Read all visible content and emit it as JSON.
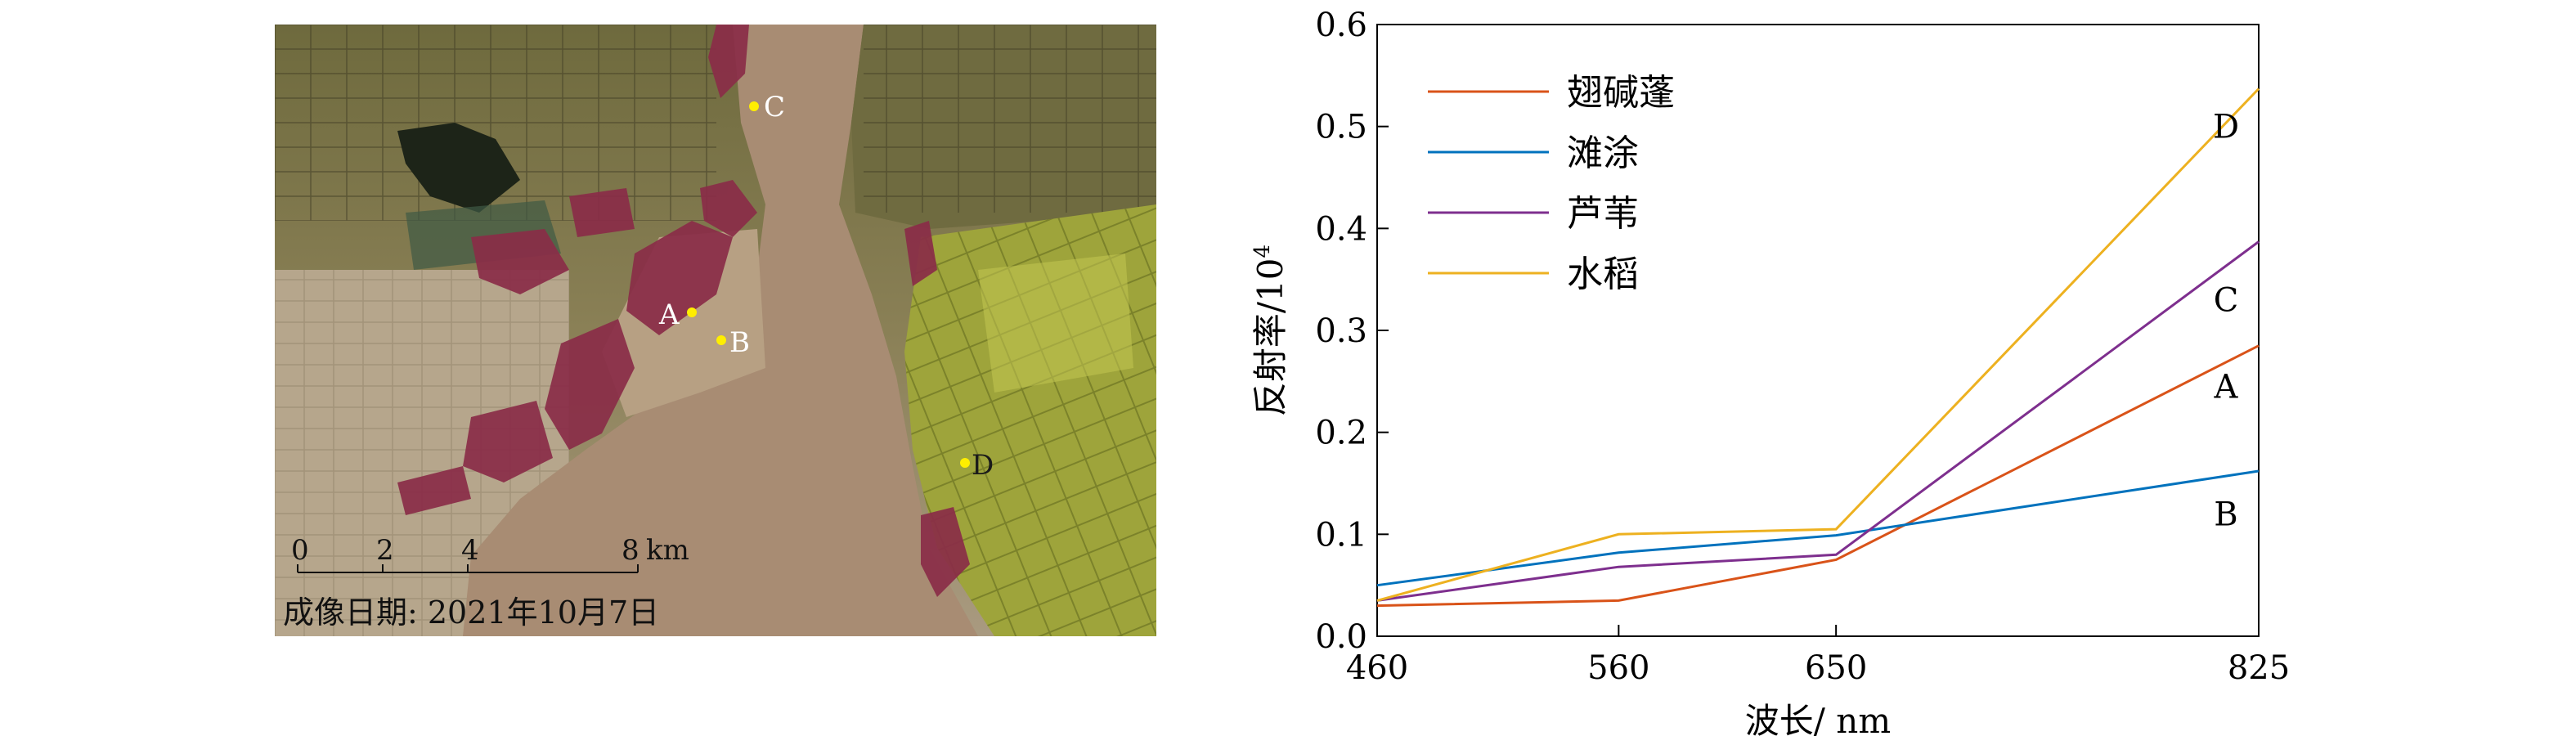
{
  "satellite_map": {
    "point_labels": [
      "A",
      "B",
      "C",
      "D"
    ],
    "scale_bar": {
      "ticks": [
        "0",
        "2",
        "4",
        "8"
      ],
      "unit": "km"
    },
    "caption": "成像日期: 2021年10月7日",
    "colors": {
      "water": "#a88c73",
      "suaeda_red": "#8a2d48",
      "rice_green": "#9ea43b",
      "marker": "#ffee00"
    }
  },
  "chart_data": {
    "type": "line",
    "x": [
      460,
      560,
      650,
      825
    ],
    "xlabel": "波长/ nm",
    "ylabel_base": "反射率/10",
    "ylabel_exp": "4",
    "xlim": [
      460,
      825
    ],
    "ylim": [
      0,
      0.6
    ],
    "yticks": [
      "0.0",
      "0.1",
      "0.2",
      "0.3",
      "0.4",
      "0.5",
      "0.6"
    ],
    "xticks": [
      "460",
      "560",
      "650",
      "825"
    ],
    "grid": false,
    "legend_position": "top-left",
    "series": [
      {
        "name": "翅碱蓬",
        "values": [
          0.03,
          0.035,
          0.075,
          0.285
        ],
        "color": "#d95319",
        "end_label": "A"
      },
      {
        "name": "滩涂",
        "values": [
          0.05,
          0.082,
          0.099,
          0.162
        ],
        "color": "#0072bd",
        "end_label": "B"
      },
      {
        "name": "芦苇",
        "values": [
          0.035,
          0.068,
          0.08,
          0.387
        ],
        "color": "#7e2f8e",
        "end_label": "C"
      },
      {
        "name": "水稻",
        "values": [
          0.035,
          0.1,
          0.105,
          0.537
        ],
        "color": "#edb120",
        "end_label": "D"
      }
    ]
  }
}
